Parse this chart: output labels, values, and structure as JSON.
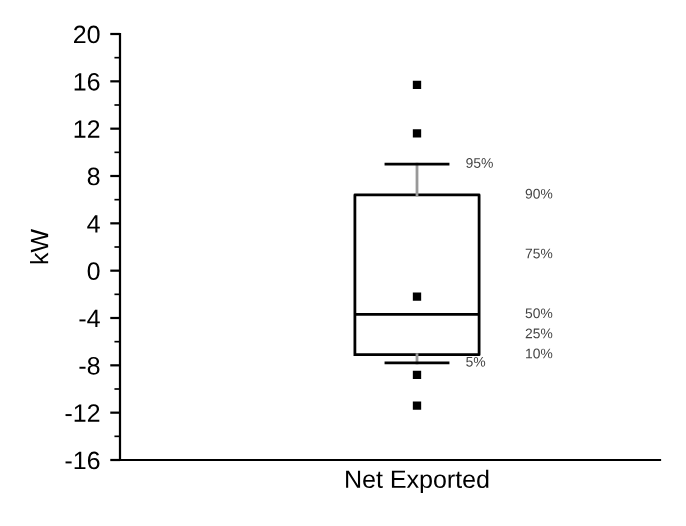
{
  "chart_data": {
    "type": "box",
    "categories": [
      "Net Exported"
    ],
    "ylabel": "kW",
    "ylim": [
      -16,
      20
    ],
    "yticks": [
      -16,
      -12,
      -8,
      -4,
      0,
      4,
      8,
      12,
      16,
      20
    ],
    "grid": false,
    "legend": false,
    "boxes": [
      {
        "low": -7.8,
        "q1": -7.1,
        "median": -3.7,
        "q3": 6.4,
        "high": 9.0,
        "mean": -2.2,
        "outliers": [
          15.7,
          11.6,
          -8.8,
          -11.4
        ]
      }
    ],
    "annotations": [
      "95%",
      "90%",
      "75%",
      "50%",
      "25%",
      "10%",
      "5%"
    ]
  }
}
